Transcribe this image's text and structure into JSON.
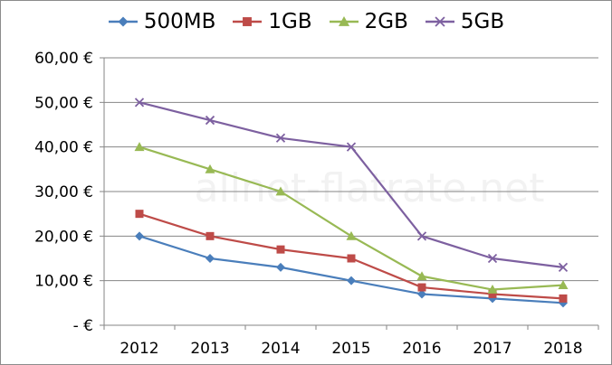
{
  "chart_data": {
    "type": "line",
    "x": [
      "2012",
      "2013",
      "2014",
      "2015",
      "2016",
      "2017",
      "2018"
    ],
    "ylim": [
      0,
      60
    ],
    "yticks": [
      0,
      10,
      20,
      30,
      40,
      50,
      60
    ],
    "ytick_labels": [
      "-   €",
      "10,00 €",
      "20,00 €",
      "30,00 €",
      "40,00 €",
      "50,00 €",
      "60,00 €"
    ],
    "grid": "horizontal",
    "legend_position": "top",
    "watermark": "allnet-flatrate.net",
    "series": [
      {
        "name": "500MB",
        "color": "#4a7ebb",
        "marker": "diamond",
        "values": [
          20,
          15,
          13,
          10,
          7,
          6,
          5
        ]
      },
      {
        "name": "1GB",
        "color": "#be4b48",
        "marker": "square",
        "values": [
          25,
          20,
          17,
          15,
          8.5,
          7,
          6
        ]
      },
      {
        "name": "2GB",
        "color": "#98b954",
        "marker": "triangle",
        "values": [
          40,
          35,
          30,
          20,
          11,
          8,
          9
        ]
      },
      {
        "name": "5GB",
        "color": "#7d60a0",
        "marker": "x",
        "values": [
          50,
          46,
          42,
          40,
          20,
          15,
          13
        ]
      }
    ]
  }
}
